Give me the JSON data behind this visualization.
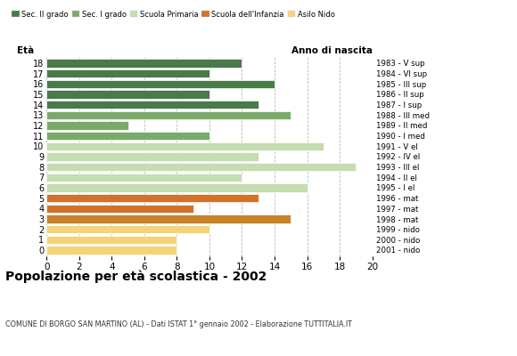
{
  "ages": [
    18,
    17,
    16,
    15,
    14,
    13,
    12,
    11,
    10,
    9,
    8,
    7,
    6,
    5,
    4,
    3,
    2,
    1,
    0
  ],
  "values": [
    12,
    10,
    14,
    10,
    13,
    15,
    5,
    10,
    17,
    13,
    19,
    12,
    16,
    13,
    9,
    15,
    10,
    8,
    8
  ],
  "right_labels": [
    "1983 - V sup",
    "1984 - VI sup",
    "1985 - III sup",
    "1986 - II sup",
    "1987 - I sup",
    "1988 - III med",
    "1989 - II med",
    "1990 - I med",
    "1991 - V el",
    "1992 - IV el",
    "1993 - III el",
    "1994 - II el",
    "1995 - I el",
    "1996 - mat",
    "1997 - mat",
    "1998 - mat",
    "1999 - nido",
    "2000 - nido",
    "2001 - nido"
  ],
  "colors_by_age": {
    "18": "#4a7a4a",
    "17": "#4a7a4a",
    "16": "#4a7a4a",
    "15": "#4a7a4a",
    "14": "#4a7a4a",
    "13": "#7aaa6a",
    "12": "#7aaa6a",
    "11": "#7aaa6a",
    "10": "#c5ddb0",
    "9": "#c5ddb0",
    "8": "#c5ddb0",
    "7": "#c5ddb0",
    "6": "#c5ddb0",
    "5": "#d2722a",
    "4": "#d2722a",
    "3": "#c8832a",
    "2": "#f5d478",
    "1": "#f5d478",
    "0": "#f5d478"
  },
  "title": "Popolazione per età scolastica - 2002",
  "subtitle": "COMUNE DI BORGO SAN MARTINO (AL) - Dati ISTAT 1° gennaio 2002 - Elaborazione TUTTITALIA.IT",
  "xlabel_left": "Età",
  "xlabel_right": "Anno di nascita",
  "xlim": [
    0,
    20
  ],
  "xticks": [
    0,
    2,
    4,
    6,
    8,
    10,
    12,
    14,
    16,
    18,
    20
  ],
  "legend_labels": [
    "Sec. II grado",
    "Sec. I grado",
    "Scuola Primaria",
    "Scuola dell'Infanzia",
    "Asilo Nido"
  ],
  "legend_colors": [
    "#4a7a4a",
    "#7aaa6a",
    "#c5ddb0",
    "#d2722a",
    "#f5d478"
  ],
  "bg_color": "#ffffff",
  "grid_color": "#99bb99",
  "bar_height": 0.78
}
